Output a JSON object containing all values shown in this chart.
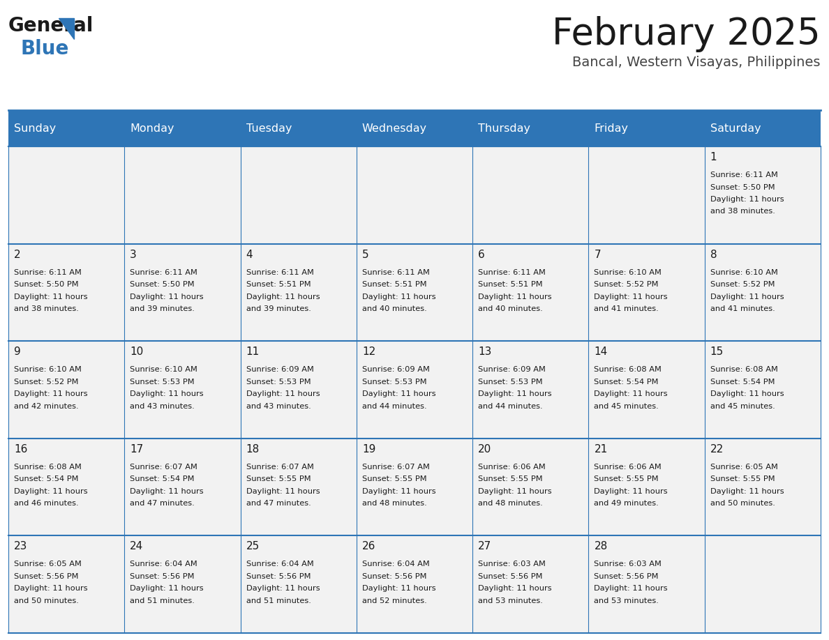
{
  "title": "February 2025",
  "subtitle": "Bancal, Western Visayas, Philippines",
  "header_bg": "#2E75B6",
  "header_text_color": "#FFFFFF",
  "cell_bg": "#F2F2F2",
  "border_color": "#2E75B6",
  "text_color": "#1a1a1a",
  "day_headers": [
    "Sunday",
    "Monday",
    "Tuesday",
    "Wednesday",
    "Thursday",
    "Friday",
    "Saturday"
  ],
  "logo_general_color": "#1a1a1a",
  "logo_blue_color": "#2E75B6",
  "days": [
    {
      "day": 1,
      "col": 6,
      "row": 0,
      "sunrise": "6:11 AM",
      "sunset": "5:50 PM",
      "daylight_hours": 11,
      "daylight_minutes": 38
    },
    {
      "day": 2,
      "col": 0,
      "row": 1,
      "sunrise": "6:11 AM",
      "sunset": "5:50 PM",
      "daylight_hours": 11,
      "daylight_minutes": 38
    },
    {
      "day": 3,
      "col": 1,
      "row": 1,
      "sunrise": "6:11 AM",
      "sunset": "5:50 PM",
      "daylight_hours": 11,
      "daylight_minutes": 39
    },
    {
      "day": 4,
      "col": 2,
      "row": 1,
      "sunrise": "6:11 AM",
      "sunset": "5:51 PM",
      "daylight_hours": 11,
      "daylight_minutes": 39
    },
    {
      "day": 5,
      "col": 3,
      "row": 1,
      "sunrise": "6:11 AM",
      "sunset": "5:51 PM",
      "daylight_hours": 11,
      "daylight_minutes": 40
    },
    {
      "day": 6,
      "col": 4,
      "row": 1,
      "sunrise": "6:11 AM",
      "sunset": "5:51 PM",
      "daylight_hours": 11,
      "daylight_minutes": 40
    },
    {
      "day": 7,
      "col": 5,
      "row": 1,
      "sunrise": "6:10 AM",
      "sunset": "5:52 PM",
      "daylight_hours": 11,
      "daylight_minutes": 41
    },
    {
      "day": 8,
      "col": 6,
      "row": 1,
      "sunrise": "6:10 AM",
      "sunset": "5:52 PM",
      "daylight_hours": 11,
      "daylight_minutes": 41
    },
    {
      "day": 9,
      "col": 0,
      "row": 2,
      "sunrise": "6:10 AM",
      "sunset": "5:52 PM",
      "daylight_hours": 11,
      "daylight_minutes": 42
    },
    {
      "day": 10,
      "col": 1,
      "row": 2,
      "sunrise": "6:10 AM",
      "sunset": "5:53 PM",
      "daylight_hours": 11,
      "daylight_minutes": 43
    },
    {
      "day": 11,
      "col": 2,
      "row": 2,
      "sunrise": "6:09 AM",
      "sunset": "5:53 PM",
      "daylight_hours": 11,
      "daylight_minutes": 43
    },
    {
      "day": 12,
      "col": 3,
      "row": 2,
      "sunrise": "6:09 AM",
      "sunset": "5:53 PM",
      "daylight_hours": 11,
      "daylight_minutes": 44
    },
    {
      "day": 13,
      "col": 4,
      "row": 2,
      "sunrise": "6:09 AM",
      "sunset": "5:53 PM",
      "daylight_hours": 11,
      "daylight_minutes": 44
    },
    {
      "day": 14,
      "col": 5,
      "row": 2,
      "sunrise": "6:08 AM",
      "sunset": "5:54 PM",
      "daylight_hours": 11,
      "daylight_minutes": 45
    },
    {
      "day": 15,
      "col": 6,
      "row": 2,
      "sunrise": "6:08 AM",
      "sunset": "5:54 PM",
      "daylight_hours": 11,
      "daylight_minutes": 45
    },
    {
      "day": 16,
      "col": 0,
      "row": 3,
      "sunrise": "6:08 AM",
      "sunset": "5:54 PM",
      "daylight_hours": 11,
      "daylight_minutes": 46
    },
    {
      "day": 17,
      "col": 1,
      "row": 3,
      "sunrise": "6:07 AM",
      "sunset": "5:54 PM",
      "daylight_hours": 11,
      "daylight_minutes": 47
    },
    {
      "day": 18,
      "col": 2,
      "row": 3,
      "sunrise": "6:07 AM",
      "sunset": "5:55 PM",
      "daylight_hours": 11,
      "daylight_minutes": 47
    },
    {
      "day": 19,
      "col": 3,
      "row": 3,
      "sunrise": "6:07 AM",
      "sunset": "5:55 PM",
      "daylight_hours": 11,
      "daylight_minutes": 48
    },
    {
      "day": 20,
      "col": 4,
      "row": 3,
      "sunrise": "6:06 AM",
      "sunset": "5:55 PM",
      "daylight_hours": 11,
      "daylight_minutes": 48
    },
    {
      "day": 21,
      "col": 5,
      "row": 3,
      "sunrise": "6:06 AM",
      "sunset": "5:55 PM",
      "daylight_hours": 11,
      "daylight_minutes": 49
    },
    {
      "day": 22,
      "col": 6,
      "row": 3,
      "sunrise": "6:05 AM",
      "sunset": "5:55 PM",
      "daylight_hours": 11,
      "daylight_minutes": 50
    },
    {
      "day": 23,
      "col": 0,
      "row": 4,
      "sunrise": "6:05 AM",
      "sunset": "5:56 PM",
      "daylight_hours": 11,
      "daylight_minutes": 50
    },
    {
      "day": 24,
      "col": 1,
      "row": 4,
      "sunrise": "6:04 AM",
      "sunset": "5:56 PM",
      "daylight_hours": 11,
      "daylight_minutes": 51
    },
    {
      "day": 25,
      "col": 2,
      "row": 4,
      "sunrise": "6:04 AM",
      "sunset": "5:56 PM",
      "daylight_hours": 11,
      "daylight_minutes": 51
    },
    {
      "day": 26,
      "col": 3,
      "row": 4,
      "sunrise": "6:04 AM",
      "sunset": "5:56 PM",
      "daylight_hours": 11,
      "daylight_minutes": 52
    },
    {
      "day": 27,
      "col": 4,
      "row": 4,
      "sunrise": "6:03 AM",
      "sunset": "5:56 PM",
      "daylight_hours": 11,
      "daylight_minutes": 53
    },
    {
      "day": 28,
      "col": 5,
      "row": 4,
      "sunrise": "6:03 AM",
      "sunset": "5:56 PM",
      "daylight_hours": 11,
      "daylight_minutes": 53
    }
  ]
}
